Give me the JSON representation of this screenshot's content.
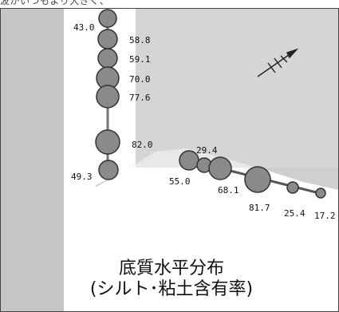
{
  "header_fragment": "波がいつもより大きく、",
  "caption": {
    "title": "底質水平分布",
    "subtitle": "(シルト･粘土含有率)"
  },
  "legend": {
    "marker_color": "#8a8a8a",
    "outline_color": "#333333"
  },
  "colors": {
    "frame": "#444444",
    "land": "#c8c8c8",
    "land_dark": "#a0a0a0",
    "water": "#ffffff",
    "sampling_line": "#555555"
  },
  "north_arrow_icon": "north-arrow-icon",
  "stations": [
    {
      "id": "s1",
      "value": "43.0"
    },
    {
      "id": "s2",
      "value": "58.8"
    },
    {
      "id": "s3",
      "value": "59.1"
    },
    {
      "id": "s4",
      "value": "70.0"
    },
    {
      "id": "s5",
      "value": "77.6"
    },
    {
      "id": "s6",
      "value": "82.0"
    },
    {
      "id": "s7",
      "value": "49.3"
    },
    {
      "id": "s8",
      "value": "55.0"
    },
    {
      "id": "s9",
      "value": "29.4"
    },
    {
      "id": "s10",
      "value": "68.1"
    },
    {
      "id": "s11",
      "value": "81.7"
    },
    {
      "id": "s12",
      "value": "25.4"
    },
    {
      "id": "s13",
      "value": "17.2"
    }
  ]
}
